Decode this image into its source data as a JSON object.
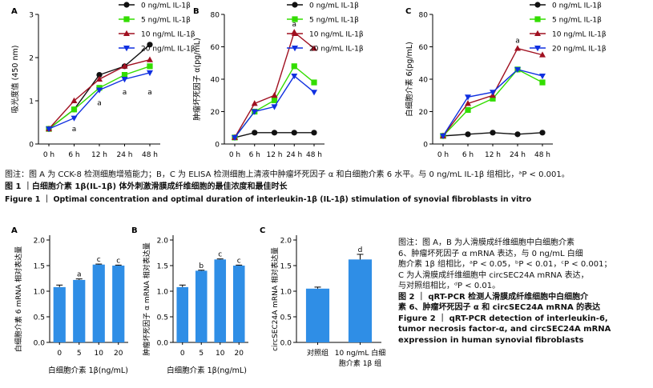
{
  "figure1": {
    "panels": [
      {
        "letter": "A",
        "ylabel": "吸光度值 (450 nm)"
      },
      {
        "letter": "B",
        "ylabel": "肿瘤坏死因子 α(pg/mL)"
      },
      {
        "letter": "C",
        "ylabel": "白细胞介素 6(pg/mL)"
      }
    ],
    "note": "图注：图 A 为 CCK-8 检测细胞增殖能力；B，C 为 ELISA 检测细胞上清液中肿瘤坏死因子 α 和白细胞介素 6 水平。与 0 ng/mL IL-1β 组相比，ᵃP < 0.001。",
    "title_zh": "图 1 ｜白细胞介素 1β(IL-1β) 体外刺激滑膜成纤维细胞的最佳浓度和最佳时长",
    "title_en": "Figure 1 ｜ Optimal concentration and optimal duration of interleukin-1β (IL-1β) stimulation of synovial fibroblasts in vitro"
  },
  "figure2": {
    "panels": [
      {
        "letter": "A",
        "ylabel": "白细胞介素 6 mRNA 相对表达量",
        "xlabel": "白细胞介素 1β(ng/mL)"
      },
      {
        "letter": "B",
        "ylabel": "肿瘤坏死因子 α mRNA 相对表达量",
        "xlabel": "白细胞介素 1β(ng/mL)"
      },
      {
        "letter": "C",
        "ylabel": "circSEC24A mRNA 相对表达量",
        "xlabel": ""
      }
    ],
    "note_lines": [
      "图注：图 A，B 为人滑膜成纤维细胞中白细胞介素",
      "6、肿瘤坏死因子 α mRNA 表达，与 0 ng/mL 白细",
      "胞介素 1β 组相比，ᵃP < 0.05，ᵇP < 0.01，ᶜP < 0.001；",
      "C 为人滑膜成纤维细胞中 circSEC24A mRNA 表达，",
      "与对照组相比，ᵈP < 0.01。"
    ],
    "title_zh_lines": [
      "图 2 ｜ qRT-PCR 检测人滑膜成纤维细胞中白细胞介",
      "素 6、肿瘤坏死因子 α 和 circSEC24A mRNA 的表达"
    ],
    "title_en_lines": [
      "Figure 2 ｜ qRT-PCR detection of interleukin-6,",
      "tumor necrosis factor-α, and circSEC24A mRNA",
      "expression in human synovial fibroblasts"
    ]
  },
  "chart_data": [
    {
      "type": "line",
      "panel": "Figure 1A",
      "title": "",
      "ylabel": "吸光度值 (450 nm)",
      "xlabel": "",
      "categories": [
        "0 h",
        "6 h",
        "12 h",
        "24 h",
        "48 h"
      ],
      "ylim": [
        0,
        3
      ],
      "yticks": [
        0,
        1,
        2,
        3
      ],
      "legend_position": "top-right",
      "series": [
        {
          "name": "0 ng/mL IL-1β",
          "color": "#111111",
          "marker": "circle",
          "values": [
            0.35,
            0.8,
            1.6,
            1.8,
            2.3
          ]
        },
        {
          "name": "5 ng/mL IL-1β",
          "color": "#33dd00",
          "marker": "square",
          "values": [
            0.35,
            0.8,
            1.3,
            1.6,
            1.8
          ]
        },
        {
          "name": "10 ng/mL IL-1β",
          "color": "#a01020",
          "marker": "triangle-up",
          "values": [
            0.35,
            1.0,
            1.5,
            1.8,
            1.95
          ]
        },
        {
          "name": "20 ng/mL IL-1β",
          "color": "#1030e0",
          "marker": "triangle-down",
          "values": [
            0.35,
            0.6,
            1.25,
            1.5,
            1.65
          ]
        }
      ],
      "annotations": [
        {
          "x": "6 h",
          "y": 0.35,
          "text": "a"
        },
        {
          "x": "12 h",
          "y": 0.95,
          "text": "a"
        },
        {
          "x": "24 h",
          "y": 1.2,
          "text": "a"
        },
        {
          "x": "48 h",
          "y": 1.2,
          "text": "a"
        }
      ]
    },
    {
      "type": "line",
      "panel": "Figure 1B",
      "title": "",
      "ylabel": "肿瘤坏死因子 α(pg/mL)",
      "xlabel": "",
      "categories": [
        "0 h",
        "6 h",
        "12 h",
        "24 h",
        "48 h"
      ],
      "ylim": [
        0,
        80
      ],
      "yticks": [
        0,
        20,
        40,
        60,
        80
      ],
      "legend_position": "top-right",
      "series": [
        {
          "name": "0 ng/mL IL-1β",
          "color": "#111111",
          "marker": "circle",
          "values": [
            4,
            7,
            7,
            7,
            7
          ]
        },
        {
          "name": "5 ng/mL IL-1β",
          "color": "#33dd00",
          "marker": "square",
          "values": [
            4,
            20,
            27,
            48,
            38
          ]
        },
        {
          "name": "10 ng/mL IL-1β",
          "color": "#a01020",
          "marker": "triangle-up",
          "values": [
            4,
            25,
            30,
            69,
            59
          ]
        },
        {
          "name": "20 ng/mL IL-1β",
          "color": "#1030e0",
          "marker": "triangle-down",
          "values": [
            4,
            20,
            23,
            42,
            32
          ]
        }
      ],
      "annotations": [
        {
          "x": "24 h",
          "y": 74,
          "text": "a"
        }
      ]
    },
    {
      "type": "line",
      "panel": "Figure 1C",
      "title": "",
      "ylabel": "白细胞介素 6(pg/mL)",
      "xlabel": "",
      "categories": [
        "0 h",
        "6 h",
        "12 h",
        "24 h",
        "48 h"
      ],
      "ylim": [
        0,
        80
      ],
      "yticks": [
        0,
        20,
        40,
        60,
        80
      ],
      "legend_position": "top-right",
      "series": [
        {
          "name": "0 ng/mL IL-1β",
          "color": "#111111",
          "marker": "circle",
          "values": [
            5,
            6,
            7,
            6,
            7
          ]
        },
        {
          "name": "5 ng/mL IL-1β",
          "color": "#33dd00",
          "marker": "square",
          "values": [
            5,
            21,
            28,
            46,
            38
          ]
        },
        {
          "name": "10 ng/mL IL-1β",
          "color": "#a01020",
          "marker": "triangle-up",
          "values": [
            5,
            25,
            30,
            59,
            55
          ]
        },
        {
          "name": "20 ng/mL IL-1β",
          "color": "#1030e0",
          "marker": "triangle-down",
          "values": [
            5,
            29,
            32,
            46,
            42
          ]
        }
      ],
      "annotations": [
        {
          "x": "24 h",
          "y": 64,
          "text": "a"
        }
      ]
    },
    {
      "type": "bar",
      "panel": "Figure 2A",
      "title": "",
      "ylabel": "白细胞介素 6 mRNA 相对表达量",
      "xlabel": "白细胞介素 1β(ng/mL)",
      "categories": [
        "0",
        "5",
        "10",
        "20"
      ],
      "values": [
        1.08,
        1.22,
        1.52,
        1.5
      ],
      "errors": [
        0.04,
        0.02,
        0.01,
        0.01
      ],
      "labels": [
        "",
        "a",
        "c",
        "c"
      ],
      "color": "#2f8ee6",
      "ylim": [
        0,
        2
      ],
      "yticks": [
        0,
        0.5,
        1.0,
        1.5,
        2.0
      ]
    },
    {
      "type": "bar",
      "panel": "Figure 2B",
      "title": "",
      "ylabel": "肿瘤坏死因子 α mRNA 相对表达量",
      "xlabel": "白细胞介素 1β(ng/mL)",
      "categories": [
        "0",
        "5",
        "10",
        "20"
      ],
      "values": [
        1.08,
        1.4,
        1.62,
        1.5
      ],
      "errors": [
        0.04,
        0.01,
        0.01,
        0.01
      ],
      "labels": [
        "",
        "b",
        "c",
        "c"
      ],
      "color": "#2f8ee6",
      "ylim": [
        0,
        2
      ],
      "yticks": [
        0,
        0.5,
        1.0,
        1.5,
        2.0
      ]
    },
    {
      "type": "bar",
      "panel": "Figure 2C",
      "title": "",
      "ylabel": "circSEC24A mRNA 相对表达量",
      "xlabel": "",
      "categories": [
        "对照组",
        "10 ng/mL 白细胞介素 1β 组"
      ],
      "category_lines": [
        [
          "对照组"
        ],
        [
          "10 ng/mL 白细",
          "胞介素 1β 组"
        ]
      ],
      "values": [
        1.05,
        1.62
      ],
      "errors": [
        0.03,
        0.1
      ],
      "labels": [
        "",
        "d"
      ],
      "color": "#2f8ee6",
      "ylim": [
        0,
        2
      ],
      "yticks": [
        0,
        0.5,
        1.0,
        1.5,
        2.0
      ]
    }
  ]
}
